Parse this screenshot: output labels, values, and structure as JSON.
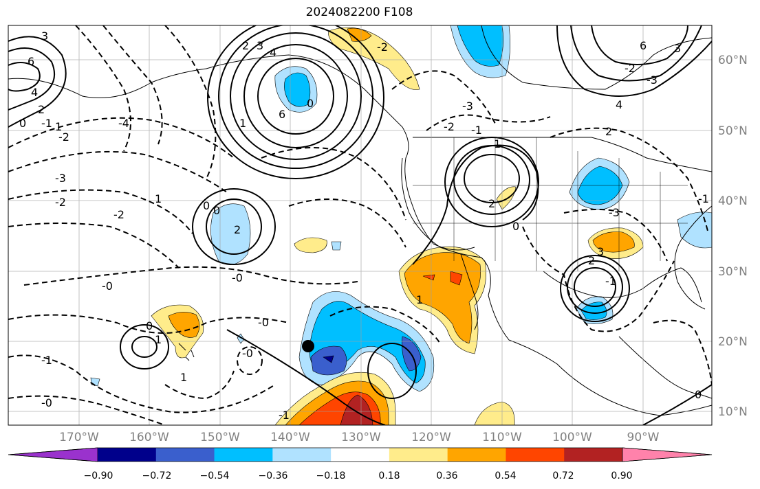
{
  "title": "2024082200 F108",
  "map": {
    "lon_labels": [
      "170°W",
      "160°W",
      "150°W",
      "140°W",
      "130°W",
      "120°W",
      "110°W",
      "100°W",
      "90°W"
    ],
    "lat_labels": [
      "60°N",
      "50°N",
      "40°N",
      "30°N",
      "20°N",
      "10°N"
    ],
    "contour_labels": [
      "3",
      "2",
      "3",
      "4",
      "6",
      "4",
      "2",
      "1",
      "0",
      "-1",
      "-2",
      "-3",
      "-4",
      "6",
      "0",
      "1",
      "-3",
      "-2",
      "-1",
      "1",
      "0",
      "2",
      "-3",
      "-2",
      "0",
      "-2",
      "1",
      "2",
      "0",
      "-0",
      "-0",
      "-0",
      "1",
      "-1",
      "-0",
      "0",
      "-0",
      "1",
      "1",
      "-1",
      "2",
      "-1",
      "3",
      "2",
      "-3",
      "-2",
      "4",
      "6",
      "3",
      "-2",
      "0",
      "-1"
    ],
    "marker": "black-dot"
  },
  "colorbar": {
    "tick_labels": [
      "−0.90",
      "−0.72",
      "−0.54",
      "−0.36",
      "−0.18",
      "0.18",
      "0.36",
      "0.54",
      "0.72",
      "0.90"
    ],
    "colors": [
      "#9a32cd",
      "#00008b",
      "#3a5fcd",
      "#00bfff",
      "#b0e2ff",
      "#ffffff",
      "#ffec8b",
      "#ffa500",
      "#ff4500",
      "#b22222",
      "#ff82ab"
    ]
  }
}
